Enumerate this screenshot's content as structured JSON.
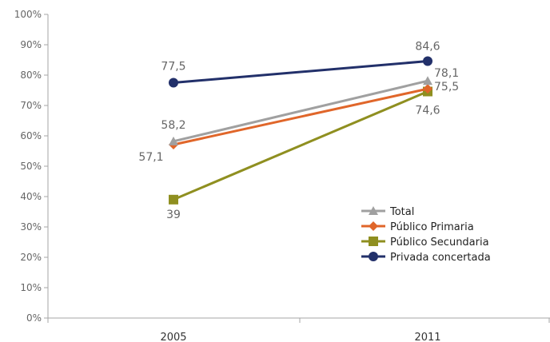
{
  "chart_data": {
    "type": "line",
    "categories": [
      "2005",
      "2011"
    ],
    "ylim": [
      0,
      100
    ],
    "y_ticks": [
      "0%",
      "10%",
      "20%",
      "30%",
      "40%",
      "50%",
      "60%",
      "70%",
      "80%",
      "90%",
      "100%"
    ],
    "grid": false,
    "legend_position": "bottom-right",
    "series": [
      {
        "name": "Total",
        "values": [
          58.2,
          78.1
        ],
        "labels": [
          "58,2",
          "78,1"
        ],
        "color": "#a0a0a0",
        "marker": "triangle"
      },
      {
        "name": "Público Primaria",
        "values": [
          57.1,
          75.5
        ],
        "labels": [
          "57,1",
          "75,5"
        ],
        "color": "#e0662a",
        "marker": "diamond"
      },
      {
        "name": "Público Secundaria",
        "values": [
          39,
          74.6
        ],
        "labels": [
          "39",
          "74,6"
        ],
        "color": "#8f8f20",
        "marker": "square"
      },
      {
        "name": "Privada concertada",
        "values": [
          77.5,
          84.6
        ],
        "labels": [
          "77,5",
          "84,6"
        ],
        "color": "#22306a",
        "marker": "circle"
      }
    ]
  }
}
